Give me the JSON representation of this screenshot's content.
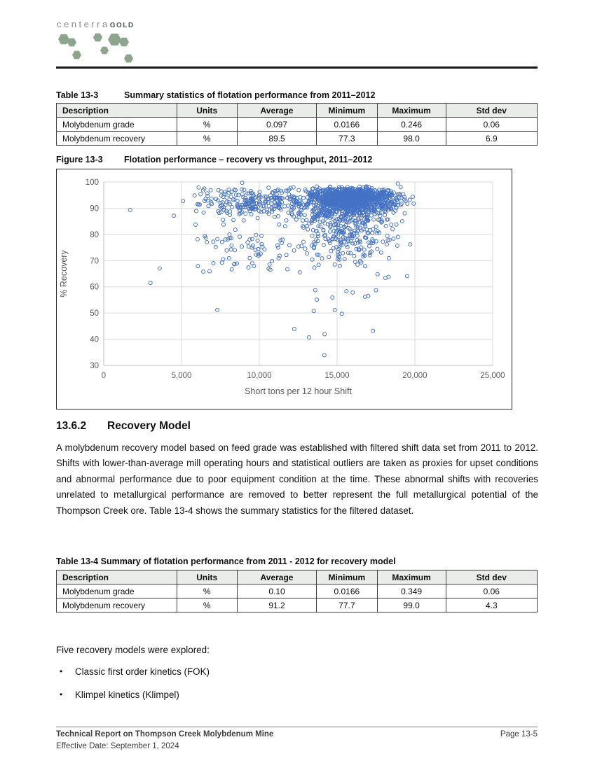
{
  "page": {
    "logo": {
      "main": "centerra",
      "suffix": "GOLD",
      "hex_color": "#8da48d"
    },
    "table_13_3": {
      "caption_label": "Table 13-3",
      "caption_text": "Summary statistics of flotation performance from 2011–2012",
      "columns": [
        "Description",
        "Units",
        "Average",
        "Minimum",
        "Maximum",
        "Std dev"
      ],
      "rows": [
        [
          "Molybdenum grade",
          "%",
          "0.097",
          "0.0166",
          "0.246",
          "0.06"
        ],
        [
          "Molybdenum recovery",
          "%",
          "89.5",
          "77.3",
          "98.0",
          "6.9"
        ]
      ]
    },
    "figure_13_3": {
      "caption_label": "Figure 13-3",
      "caption_text": "Flotation performance – recovery vs throughput, 2011–2012"
    },
    "section": {
      "number": "13.6.2",
      "title": "Recovery Model"
    },
    "paragraph": "A molybdenum recovery model based on feed grade was established with filtered shift data set from 2011 to 2012. Shifts with lower-than-average mill operating hours and statistical outliers are taken as proxies for upset conditions and abnormal performance due to poor equipment condition at the time. These abnormal shifts with recoveries unrelated to metallurgical performance are removed to better represent the full metallurgical potential of the Thompson Creek ore. Table 13-4 shows the summary statistics for the filtered dataset.",
    "table_13_4": {
      "caption": "Table 13-4 Summary of flotation performance from 2011 - 2012 for recovery model",
      "columns": [
        "Description",
        "Units",
        "Average",
        "Minimum",
        "Maximum",
        "Std dev"
      ],
      "rows": [
        [
          "Molybdenum grade",
          "%",
          "0.10",
          "0.0166",
          "0.349",
          "0.06"
        ],
        [
          "Molybdenum recovery",
          "%",
          "91.2",
          "77.7",
          "99.0",
          "4.3"
        ]
      ]
    },
    "list_intro": "Five recovery models were explored:",
    "bullets": [
      "Classic first order kinetics (FOK)",
      "Klimpel kinetics (Klimpel)"
    ],
    "footer": {
      "title": "Technical Report on Thompson Creek Molybdenum Mine",
      "date": "Effective Date: September 1, 2024",
      "page": "Page 13-5"
    }
  },
  "chart_data": {
    "type": "scatter",
    "title": "Flotation performance – recovery vs throughput, 2011–2012",
    "xlabel": "Short tons per 12 hour Shift",
    "ylabel": "% Recovery",
    "xlim": [
      0,
      25000
    ],
    "ylim": [
      30,
      100
    ],
    "x_ticks": [
      0,
      5000,
      10000,
      15000,
      20000,
      25000
    ],
    "x_tick_labels": [
      "0",
      "5,000",
      "10,000",
      "15,000",
      "20,000",
      "25,000"
    ],
    "y_ticks": [
      30,
      40,
      50,
      60,
      70,
      80,
      90,
      100
    ],
    "grid": true,
    "legend": "none",
    "marker": {
      "shape": "open-circle",
      "color": "#4472C4",
      "radius": 2.5,
      "stroke_width": 1
    },
    "grid_color": "#D9D9D9",
    "axis_line_color": "#BFBFBF",
    "tick_label_color": "#595959",
    "seed": 20112012,
    "clusters": [
      {
        "name": "dense-core",
        "count": 1000,
        "x_mean": 15900,
        "x_sd": 1400,
        "x_min": 12600,
        "x_max": 20150,
        "mode": "normal",
        "y_mean": 93.6,
        "y_sd": 2.2,
        "y_min": 84.5,
        "y_max": 98.4
      },
      {
        "name": "core-fringe",
        "count": 260,
        "x_mean": 15600,
        "x_sd": 1700,
        "x_min": 12400,
        "x_max": 20000,
        "mode": "normal",
        "y_mean": 88.0,
        "y_sd": 3.0,
        "y_min": 78.0,
        "y_max": 97.0
      },
      {
        "name": "mid-band",
        "count": 250,
        "x_mean": 10000,
        "x_sd": 2200,
        "x_min": 5800,
        "x_max": 13600,
        "mode": "normal",
        "y_mean": 92.3,
        "y_sd": 3.3,
        "y_min": 80.5,
        "y_max": 98.2
      },
      {
        "name": "core-lower-tail",
        "count": 150,
        "x_mean": 15300,
        "x_sd": 1600,
        "x_min": 12500,
        "x_max": 19300,
        "mode": "half-down",
        "y_top": 82.0,
        "y_sd": 6.5,
        "y_min": 62.0
      },
      {
        "name": "mid-low-scatter",
        "count": 60,
        "x_mean": 9300,
        "x_sd": 2100,
        "x_min": 6000,
        "x_max": 13300,
        "mode": "half-down",
        "y_top": 80.0,
        "y_sd": 6.0,
        "y_min": 64.0
      }
    ],
    "outlier_points": [
      [
        1700,
        89.3
      ],
      [
        3000,
        61.5
      ],
      [
        3600,
        67.0
      ],
      [
        4500,
        87.1
      ],
      [
        5100,
        92.7
      ],
      [
        5900,
        83.7
      ],
      [
        6100,
        97.9
      ],
      [
        6050,
        67.9
      ],
      [
        6400,
        65.8
      ],
      [
        6800,
        65.9
      ],
      [
        7050,
        69.0
      ],
      [
        7300,
        51.2
      ],
      [
        7200,
        75.2
      ],
      [
        7600,
        69.2
      ],
      [
        8100,
        78.6
      ],
      [
        8900,
        99.7
      ],
      [
        10200,
        75.3
      ],
      [
        10600,
        66.9
      ],
      [
        11500,
        78.0
      ],
      [
        11800,
        66.7
      ],
      [
        12250,
        43.9
      ],
      [
        12600,
        65.5
      ],
      [
        13200,
        40.7
      ],
      [
        13500,
        50.8
      ],
      [
        13600,
        58.7
      ],
      [
        13700,
        55.1
      ],
      [
        14180,
        33.9
      ],
      [
        14200,
        41.9
      ],
      [
        14700,
        55.9
      ],
      [
        14850,
        51.1
      ],
      [
        15300,
        49.7
      ],
      [
        15600,
        58.3
      ],
      [
        16000,
        57.8
      ],
      [
        16800,
        56.2
      ],
      [
        17000,
        56.5
      ],
      [
        17300,
        43.2
      ],
      [
        17500,
        58.7
      ],
      [
        17600,
        64.8
      ],
      [
        18300,
        63.8
      ],
      [
        18900,
        99.4
      ],
      [
        19500,
        64.1
      ],
      [
        19700,
        76.2
      ]
    ]
  }
}
